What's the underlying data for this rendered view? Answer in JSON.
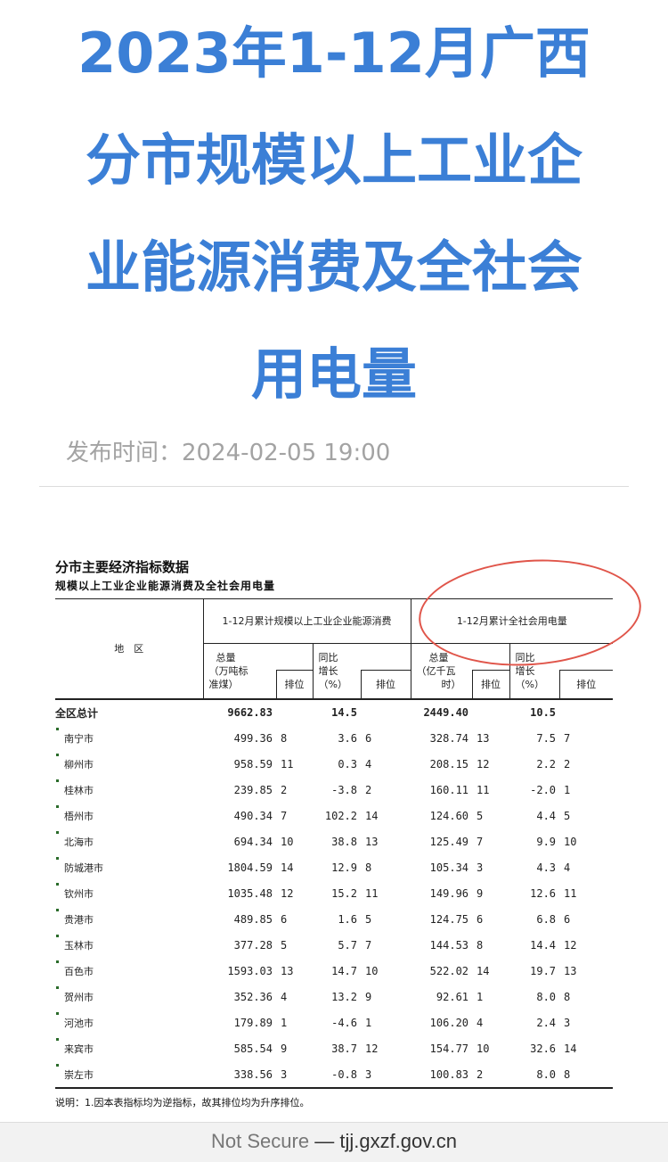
{
  "article": {
    "title_lines": [
      "2023年1-12月广西",
      "分市规模以上工业企",
      "业能源消费及全社会",
      "用电量"
    ],
    "publish_label": "发布时间：",
    "publish_time": "2024-02-05 19:00"
  },
  "table": {
    "heading": "分市主要经济指标数据",
    "subheading": "规模以上工业企业能源消费及全社会用电量",
    "region_header": "地　区",
    "group1": "1-12月累计规模以上工业企业能源消费",
    "group2": "1-12月累计全社会用电量",
    "g1_total": [
      "总量",
      "（万吨标",
      "准煤）"
    ],
    "g1_yoy": [
      "同比",
      "增长",
      "（%）"
    ],
    "g2_total": [
      "总量",
      "（亿千瓦",
      "时）"
    ],
    "g2_yoy": [
      "同比",
      "增长",
      "（%）"
    ],
    "rank": "排位",
    "total_row": {
      "name": "全区总计",
      "energy": "9662.83",
      "energy_yoy": "14.5",
      "power": "2449.40",
      "power_yoy": "10.5"
    },
    "rows": [
      {
        "name": "南宁市",
        "v": [
          "499.36",
          "8",
          "3.6",
          "6",
          "328.74",
          "13",
          "7.5",
          "7"
        ]
      },
      {
        "name": "柳州市",
        "v": [
          "958.59",
          "11",
          "0.3",
          "4",
          "208.15",
          "12",
          "2.2",
          "2"
        ]
      },
      {
        "name": "桂林市",
        "v": [
          "239.85",
          "2",
          "-3.8",
          "2",
          "160.11",
          "11",
          "-2.0",
          "1"
        ]
      },
      {
        "name": "梧州市",
        "v": [
          "490.34",
          "7",
          "102.2",
          "14",
          "124.60",
          "5",
          "4.4",
          "5"
        ]
      },
      {
        "name": "北海市",
        "v": [
          "694.34",
          "10",
          "38.8",
          "13",
          "125.49",
          "7",
          "9.9",
          "10"
        ]
      },
      {
        "name": "防城港市",
        "v": [
          "1804.59",
          "14",
          "12.9",
          "8",
          "105.34",
          "3",
          "4.3",
          "4"
        ]
      },
      {
        "name": "钦州市",
        "v": [
          "1035.48",
          "12",
          "15.2",
          "11",
          "149.96",
          "9",
          "12.6",
          "11"
        ]
      },
      {
        "name": "贵港市",
        "v": [
          "489.85",
          "6",
          "1.6",
          "5",
          "124.75",
          "6",
          "6.8",
          "6"
        ]
      },
      {
        "name": "玉林市",
        "v": [
          "377.28",
          "5",
          "5.7",
          "7",
          "144.53",
          "8",
          "14.4",
          "12"
        ]
      },
      {
        "name": "百色市",
        "v": [
          "1593.03",
          "13",
          "14.7",
          "10",
          "522.02",
          "14",
          "19.7",
          "13"
        ]
      },
      {
        "name": "贺州市",
        "v": [
          "352.36",
          "4",
          "13.2",
          "9",
          "92.61",
          "1",
          "8.0",
          "8"
        ]
      },
      {
        "name": "河池市",
        "v": [
          "179.89",
          "1",
          "-4.6",
          "1",
          "106.20",
          "4",
          "2.4",
          "3"
        ]
      },
      {
        "name": "来宾市",
        "v": [
          "585.54",
          "9",
          "38.7",
          "12",
          "154.77",
          "10",
          "32.6",
          "14"
        ]
      },
      {
        "name": "崇左市",
        "v": [
          "338.56",
          "3",
          "-0.8",
          "3",
          "100.83",
          "2",
          "8.0",
          "8"
        ]
      }
    ],
    "note": "说明：1.因本表指标均为逆指标，故其排位均为升序排位。"
  },
  "browser": {
    "security": "Not Secure",
    "separator": "—",
    "domain": "tjj.gxzf.gov.cn"
  },
  "colors": {
    "title": "#3b7fd6",
    "annotation_circle": "#e0554a"
  }
}
